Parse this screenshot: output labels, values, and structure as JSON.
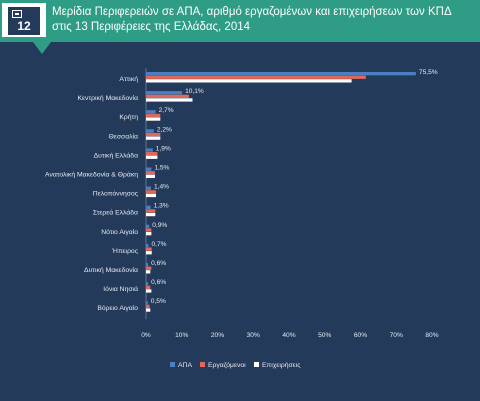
{
  "header": {
    "badge_number": "12",
    "title": "Μερίδια Περιφερειών σε ΑΠΑ, αριθμό εργαζομένων και επιχειρήσεων των ΚΠΔ στις 13 Περιφέρειες της Ελλάδας, 2014"
  },
  "chart_data": {
    "type": "bar",
    "orientation": "horizontal",
    "categories": [
      "Αττική",
      "Κεντρική Μακεδονία",
      "Κρήτη",
      "Θεσσαλία",
      "Δυτική Ελλάδα",
      "Ανατολική Μακεδονία & Θράκη",
      "Πελοπόννησος",
      "Στερεά Ελλάδα",
      "Νότιο Αιγαίο",
      "Ήπειρος",
      "Δυτική Μακεδονία",
      "Ιόνια Νησιά",
      "Βόρειο Αιγαίο"
    ],
    "series": [
      {
        "name": "ΑΠΑ",
        "color": "#4a7fc1",
        "values": [
          75.5,
          10.1,
          2.7,
          2.2,
          1.9,
          1.5,
          1.4,
          1.3,
          0.9,
          0.7,
          0.6,
          0.6,
          0.5
        ]
      },
      {
        "name": "Εργαζόμενοι",
        "color": "#e0685a",
        "values": [
          61.5,
          12.0,
          4.0,
          4.0,
          3.2,
          2.5,
          2.8,
          2.6,
          1.5,
          1.6,
          1.5,
          1.2,
          1.0
        ]
      },
      {
        "name": "Επιχειρήσεις",
        "color": "#ffffff",
        "values": [
          57.5,
          13.0,
          4.0,
          4.0,
          3.2,
          2.5,
          2.8,
          2.6,
          1.5,
          1.6,
          1.2,
          1.5,
          1.2
        ]
      }
    ],
    "data_labels": [
      "75,5%",
      "10,1%",
      "2,7%",
      "2,2%",
      "1,9%",
      "1,5%",
      "1,4%",
      "1,3%",
      "0,9%",
      "0,7%",
      "0,6%",
      "0,6%",
      "0,5%"
    ],
    "x_ticks": [
      "0%",
      "10%",
      "20%",
      "30%",
      "40%",
      "50%",
      "60%",
      "70%",
      "80%"
    ],
    "xlim": [
      0,
      80
    ],
    "grid": false,
    "legend_position": "bottom"
  }
}
